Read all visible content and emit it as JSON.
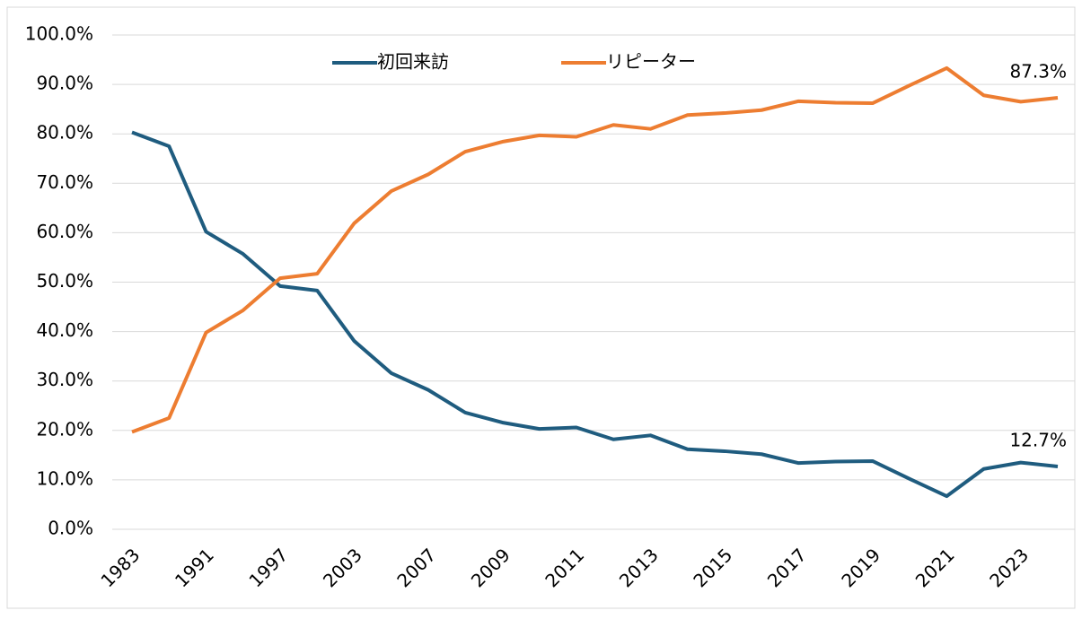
{
  "chart_data": {
    "type": "line",
    "categories": [
      "1983",
      null,
      "1991",
      null,
      "1997",
      null,
      "2003",
      null,
      "2007",
      null,
      "2009",
      null,
      "2011",
      null,
      "2013",
      null,
      "2015",
      null,
      "2017",
      null,
      "2019",
      null,
      "2021",
      null,
      "2023",
      null
    ],
    "series": [
      {
        "name": "初回来訪",
        "color": "#1f5c7f",
        "values": [
          80.3,
          77.5,
          60.2,
          55.7,
          49.2,
          48.3,
          38.1,
          31.6,
          28.2,
          23.6,
          21.6,
          20.3,
          20.6,
          18.2,
          19.0,
          16.2,
          15.8,
          15.2,
          13.4,
          13.7,
          13.8,
          10.2,
          6.7,
          12.2,
          13.5,
          12.7
        ],
        "value_labels": [
          null,
          null,
          null,
          null,
          null,
          null,
          null,
          null,
          null,
          null,
          null,
          null,
          null,
          null,
          null,
          null,
          null,
          null,
          null,
          null,
          null,
          null,
          null,
          null,
          null,
          "12.7%"
        ]
      },
      {
        "name": "リピーター",
        "color": "#ed7d31",
        "values": [
          19.7,
          22.5,
          39.8,
          44.3,
          50.8,
          51.7,
          61.9,
          68.4,
          71.8,
          76.4,
          78.4,
          79.7,
          79.4,
          81.8,
          81.0,
          83.8,
          84.2,
          84.8,
          86.6,
          86.3,
          86.2,
          89.8,
          93.3,
          87.8,
          86.5,
          87.3
        ],
        "value_labels": [
          null,
          null,
          null,
          null,
          null,
          null,
          null,
          null,
          null,
          null,
          null,
          null,
          null,
          null,
          null,
          null,
          null,
          null,
          null,
          null,
          null,
          null,
          null,
          null,
          null,
          "87.3%"
        ]
      }
    ],
    "ylim": [
      0,
      100
    ],
    "yticks": [
      {
        "value": 0,
        "label": "0.0%"
      },
      {
        "value": 10,
        "label": "10.0%"
      },
      {
        "value": 20,
        "label": "20.0%"
      },
      {
        "value": 30,
        "label": "30.0%"
      },
      {
        "value": 40,
        "label": "40.0%"
      },
      {
        "value": 50,
        "label": "50.0%"
      },
      {
        "value": 60,
        "label": "60.0%"
      },
      {
        "value": 70,
        "label": "70.0%"
      },
      {
        "value": 80,
        "label": "80.0%"
      },
      {
        "value": 90,
        "label": "90.0%"
      },
      {
        "value": 100,
        "label": "100.0%"
      }
    ],
    "grid": true,
    "legend": "top"
  }
}
